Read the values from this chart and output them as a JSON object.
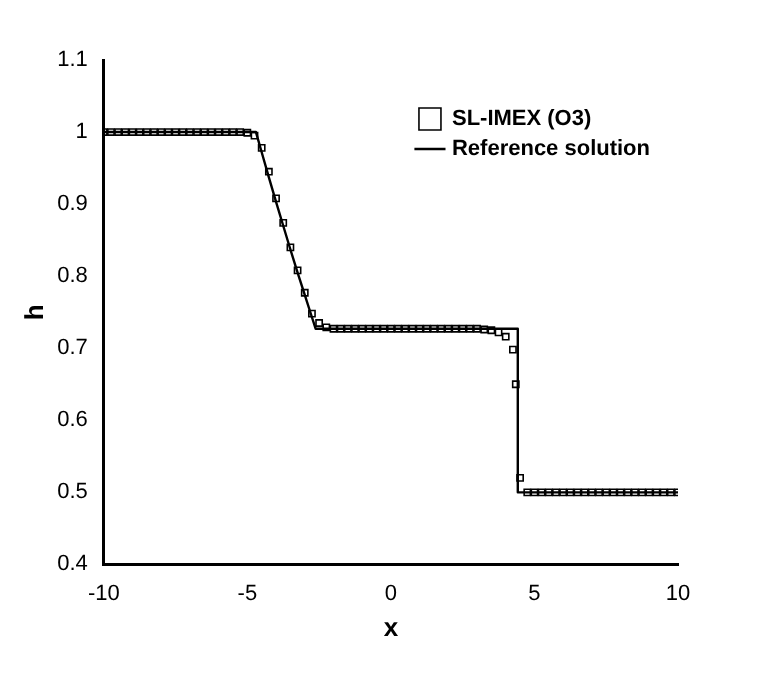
{
  "chart_data": {
    "type": "scatter",
    "xlabel": "x",
    "ylabel": "h",
    "xlim": [
      -10,
      10
    ],
    "xticks": [
      -10,
      -5,
      0,
      5,
      10
    ],
    "ylim": [
      0.4,
      1.1
    ],
    "yticks": [
      0.4,
      0.5,
      0.6,
      0.7,
      0.8,
      0.9,
      1,
      1.1
    ],
    "grid": false,
    "legend": "top right",
    "series": [
      {
        "name": "SL-IMEX (O3)",
        "type": "scatter",
        "marker": "square",
        "color": "#000000",
        "x": [
          -10,
          -9.75,
          -9.5,
          -9.25,
          -9,
          -8.75,
          -8.5,
          -8.25,
          -8,
          -7.75,
          -7.5,
          -7.25,
          -7,
          -6.75,
          -6.5,
          -6.25,
          -6,
          -5.75,
          -5.5,
          -5.25,
          -5,
          -4.75,
          -4.5,
          -4.25,
          -4,
          -3.75,
          -3.5,
          -3.25,
          -3,
          -2.75,
          -2.5,
          -2.25,
          -2,
          -1.75,
          -1.5,
          -1.25,
          -1,
          -0.75,
          -0.5,
          -0.25,
          0,
          0.25,
          0.5,
          0.75,
          1,
          1.25,
          1.5,
          1.75,
          2,
          2.25,
          2.5,
          2.75,
          3,
          3.25,
          3.5,
          3.75,
          4,
          4.25,
          4.35,
          4.5,
          4.75,
          5,
          5.25,
          5.5,
          5.75,
          6,
          6.25,
          6.5,
          6.75,
          7,
          7.25,
          7.5,
          7.75,
          8,
          8.25,
          8.5,
          8.75,
          9,
          9.25,
          9.5,
          9.75,
          10
        ],
        "values": [
          1,
          1,
          1,
          1,
          1,
          1,
          1,
          1,
          1,
          1,
          1,
          1,
          1,
          1,
          1,
          1,
          1,
          1,
          1,
          1,
          0.999,
          0.995,
          0.978,
          0.945,
          0.908,
          0.874,
          0.84,
          0.808,
          0.777,
          0.748,
          0.735,
          0.729,
          0.727,
          0.727,
          0.727,
          0.727,
          0.727,
          0.727,
          0.727,
          0.727,
          0.727,
          0.727,
          0.727,
          0.727,
          0.727,
          0.727,
          0.727,
          0.727,
          0.727,
          0.727,
          0.727,
          0.727,
          0.727,
          0.726,
          0.725,
          0.722,
          0.716,
          0.698,
          0.65,
          0.52,
          0.5,
          0.5,
          0.5,
          0.5,
          0.5,
          0.5,
          0.5,
          0.5,
          0.5,
          0.5,
          0.5,
          0.5,
          0.5,
          0.5,
          0.5,
          0.5,
          0.5,
          0.5,
          0.5,
          0.5,
          0.5,
          0.5
        ]
      },
      {
        "name": "Reference solution",
        "type": "line",
        "marker": "none",
        "line_style": "solid",
        "color": "#000000",
        "x": [
          -10,
          -4.7,
          -4.5,
          -4.25,
          -4,
          -3.75,
          -3.5,
          -3.25,
          -3,
          -2.75,
          -2.62,
          4.42,
          4.42,
          10
        ],
        "values": [
          1,
          1,
          0.972,
          0.937,
          0.903,
          0.87,
          0.837,
          0.805,
          0.774,
          0.743,
          0.727,
          0.727,
          0.5,
          0.5
        ]
      }
    ]
  }
}
